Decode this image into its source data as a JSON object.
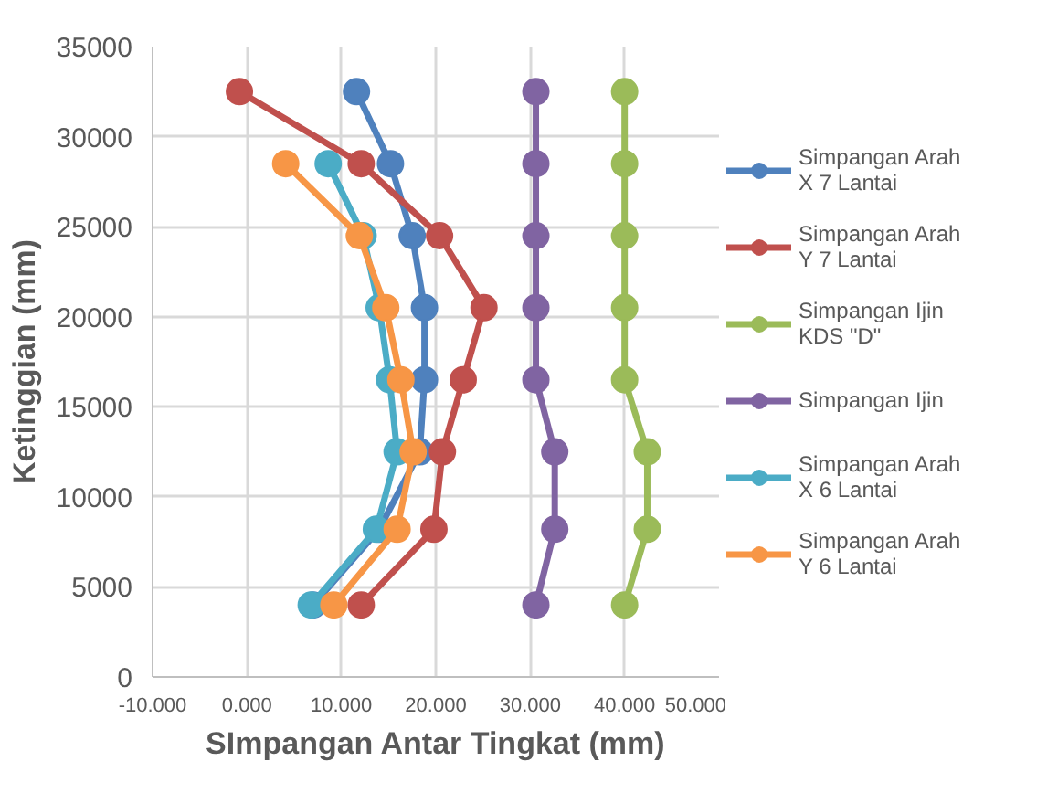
{
  "chart_data": {
    "type": "line",
    "xlabel": "SImpangan Antar Tingkat (mm)",
    "ylabel": "Ketinggian (mm)",
    "xlim": [
      -10,
      50
    ],
    "ylim": [
      0,
      35000
    ],
    "xticks": [
      {
        "value": -10,
        "label": "-10.000"
      },
      {
        "value": 0,
        "label": "0.000"
      },
      {
        "value": 10,
        "label": "10.000"
      },
      {
        "value": 20,
        "label": "20.000"
      },
      {
        "value": 30,
        "label": "30.000"
      },
      {
        "value": 40,
        "label": "40.000"
      },
      {
        "value": 50,
        "label": "50.000"
      }
    ],
    "yticks": [
      0,
      5000,
      10000,
      15000,
      20000,
      25000,
      30000,
      35000
    ],
    "grid": true,
    "legend": "right",
    "marker": "circle",
    "line_style": "solid",
    "series": [
      {
        "name": "Simpangan Arah X 7 Lantai",
        "color": "#4f81bd",
        "x": [
          11.6,
          15.2,
          17.5,
          18.8,
          18.8,
          18.3,
          14.0,
          7.0
        ],
        "values": [
          32500,
          28500,
          24500,
          20500,
          16500,
          12500,
          8200,
          4000
        ]
      },
      {
        "name": "Simpangan Arah Y 7 Lantai",
        "color": "#c0504d",
        "x": [
          -0.8,
          12.1,
          20.4,
          25.1,
          22.9,
          20.7,
          19.8,
          12.1
        ],
        "values": [
          32500,
          28500,
          24500,
          20500,
          16500,
          12500,
          8200,
          4000
        ]
      },
      {
        "name": "Simpangan Ijin KDS \"D\"",
        "color": "#9bbb59",
        "x": [
          40.0,
          40.0,
          40.0,
          40.0,
          40.0,
          42.4,
          42.4,
          40.0
        ],
        "values": [
          32500,
          28500,
          24500,
          20500,
          16500,
          12500,
          8200,
          4000
        ]
      },
      {
        "name": "Simpangan Ijin",
        "color": "#8064a2",
        "x": [
          30.6,
          30.6,
          30.6,
          30.6,
          30.6,
          32.6,
          32.6,
          30.6
        ],
        "values": [
          32500,
          28500,
          24500,
          20500,
          16500,
          12500,
          8200,
          4000
        ]
      },
      {
        "name": "Simpangan Arah X 6 Lantai",
        "color": "#4bacc6",
        "x": [
          8.6,
          12.3,
          14.0,
          15.1,
          15.9,
          13.7,
          6.8
        ],
        "values": [
          28500,
          24500,
          20500,
          16500,
          12500,
          8200,
          4000
        ]
      },
      {
        "name": "Simpangan Arah Y 6 Lantai",
        "color": "#f79646",
        "x": [
          4.1,
          11.9,
          14.7,
          16.3,
          17.6,
          15.9,
          9.2
        ],
        "values": [
          28500,
          24500,
          20500,
          16500,
          12500,
          8200,
          4000
        ]
      }
    ]
  }
}
